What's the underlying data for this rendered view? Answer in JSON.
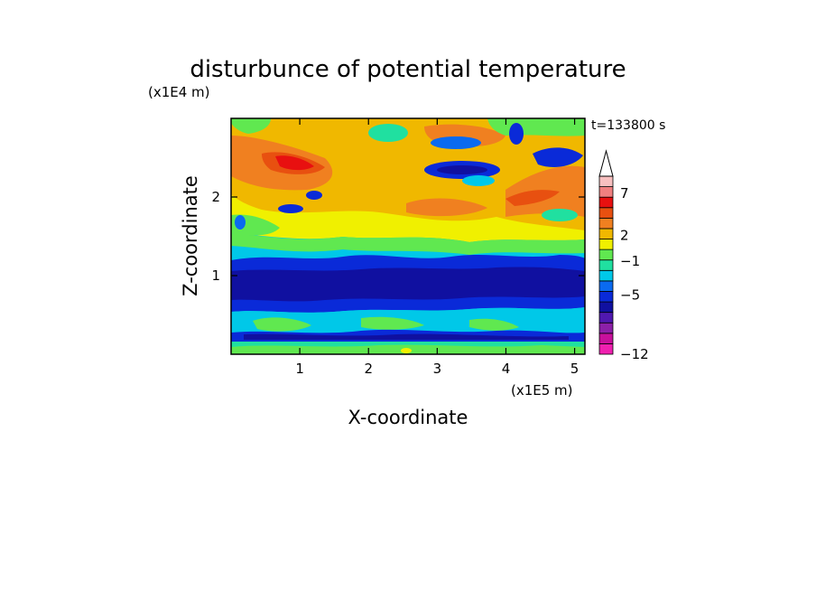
{
  "chart_data": {
    "type": "heatmap",
    "title": "disturbunce of potential temperature",
    "xlabel": "X-coordinate",
    "ylabel": "Z-coordinate",
    "x_unit": "(x1E5 m)",
    "y_unit": "(x1E4 m)",
    "time_label": "t=133800 s",
    "xlim": [
      0,
      5.15
    ],
    "ylim": [
      0,
      3.0
    ],
    "x_ticks": [
      {
        "v": 1,
        "t": "1"
      },
      {
        "v": 2,
        "t": "2"
      },
      {
        "v": 3,
        "t": "3"
      },
      {
        "v": 4,
        "t": "4"
      },
      {
        "v": 5,
        "t": "5"
      }
    ],
    "y_ticks": [
      {
        "v": 1,
        "t": "1"
      },
      {
        "v": 2,
        "t": "2"
      }
    ],
    "colorbar": {
      "colors": [
        "#f020b0",
        "#c8109c",
        "#8c20a8",
        "#5018b0",
        "#1010a0",
        "#0a2ad8",
        "#0a6af0",
        "#00c8e8",
        "#20e0a0",
        "#60e850",
        "#f0f000",
        "#f0b800",
        "#f08020",
        "#e85010",
        "#e81010",
        "#f08080",
        "#f8c0c0"
      ],
      "labels": [
        {
          "v": -12,
          "t": "−12"
        },
        {
          "v": -5,
          "t": "−5"
        },
        {
          "v": -1,
          "t": "−1"
        },
        {
          "v": 2,
          "t": "2"
        },
        {
          "v": 7,
          "t": "7"
        }
      ],
      "extend_top": true
    },
    "grid": false
  }
}
